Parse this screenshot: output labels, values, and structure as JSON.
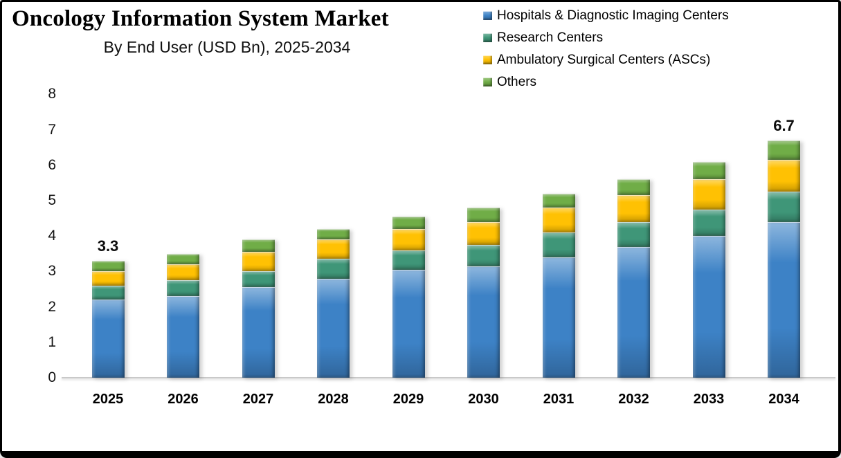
{
  "header": {
    "title": "Oncology Information System Market",
    "subtitle": "By End User (USD Bn), 2025-2034"
  },
  "chart_data": {
    "type": "bar",
    "stacked": true,
    "title": "Oncology Information System Market",
    "subtitle": "By End User (USD Bn), 2025-2034",
    "units": "USD Bn",
    "grid": false,
    "legend_position": "top-right",
    "ylim": [
      0,
      8
    ],
    "yticks": [
      0,
      1,
      2,
      3,
      4,
      5,
      6,
      7,
      8
    ],
    "categories": [
      "2025",
      "2026",
      "2027",
      "2028",
      "2029",
      "2030",
      "2031",
      "2032",
      "2033",
      "2034"
    ],
    "series": [
      {
        "name": "Hospitals & Diagnostic Imaging Centers",
        "color": "#3d82c6",
        "values": [
          2.2,
          2.3,
          2.55,
          2.8,
          3.05,
          3.15,
          3.4,
          3.7,
          4.0,
          4.4
        ]
      },
      {
        "name": "Research Centers",
        "color": "#3f9678",
        "values": [
          0.4,
          0.45,
          0.45,
          0.55,
          0.55,
          0.6,
          0.7,
          0.7,
          0.75,
          0.85
        ]
      },
      {
        "name": "Ambulatory Surgical Centers (ASCs)",
        "color": "#ffc103",
        "values": [
          0.4,
          0.45,
          0.55,
          0.55,
          0.6,
          0.65,
          0.7,
          0.75,
          0.85,
          0.9
        ]
      },
      {
        "name": "Others",
        "color": "#70ad47",
        "values": [
          0.3,
          0.3,
          0.35,
          0.3,
          0.35,
          0.4,
          0.4,
          0.45,
          0.5,
          0.55
        ]
      }
    ],
    "totals": [
      3.3,
      3.5,
      3.9,
      4.2,
      4.55,
      4.8,
      5.2,
      5.6,
      6.1,
      6.7
    ],
    "data_labels": [
      {
        "category": "2025",
        "text": "3.3"
      },
      {
        "category": "2034",
        "text": "6.7"
      }
    ],
    "axis_line_color": "#c9c9c9",
    "text_color": "#000000"
  }
}
